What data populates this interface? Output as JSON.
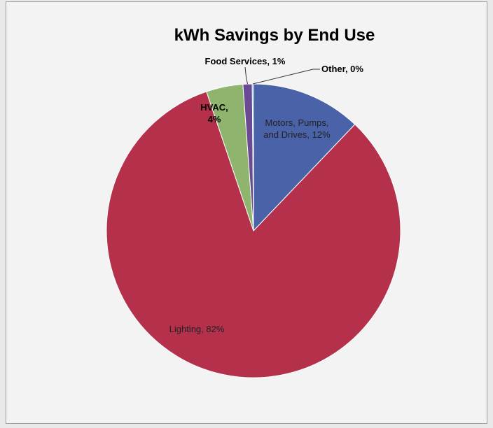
{
  "chart_data": {
    "type": "pie",
    "title": "kWh Savings by End Use",
    "slices": [
      {
        "label": "Motors, Pumps, and Drives",
        "value": 12,
        "display_label": [
          "Motors, Pumps,",
          "and Drives, 12%"
        ],
        "color": "#4a62a8"
      },
      {
        "label": "Lighting",
        "value": 82,
        "display_label": [
          "Lighting, 82%"
        ],
        "color": "#b5314b"
      },
      {
        "label": "HVAC",
        "value": 4,
        "display_label": [
          "HVAC,",
          "4%"
        ],
        "color": "#8fb46d"
      },
      {
        "label": "Food Services",
        "value": 1,
        "display_label": [
          "Food Services, 1%"
        ],
        "color": "#6a4a93"
      },
      {
        "label": "Other",
        "value": 0,
        "display_label": [
          "Other, 0%"
        ],
        "color": "#3a9bb0"
      }
    ]
  }
}
